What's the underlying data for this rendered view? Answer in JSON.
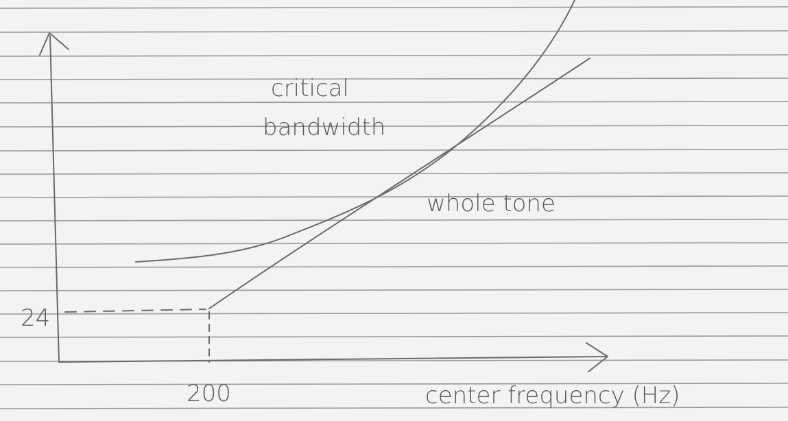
{
  "y_axis": {
    "tick": "24"
  },
  "x_axis": {
    "tick": "200",
    "title": "center frequency (Hz)"
  },
  "curves": [
    {
      "label_lines": [
        "critical",
        "bandwidth"
      ]
    },
    {
      "label": "whole tone"
    }
  ]
}
